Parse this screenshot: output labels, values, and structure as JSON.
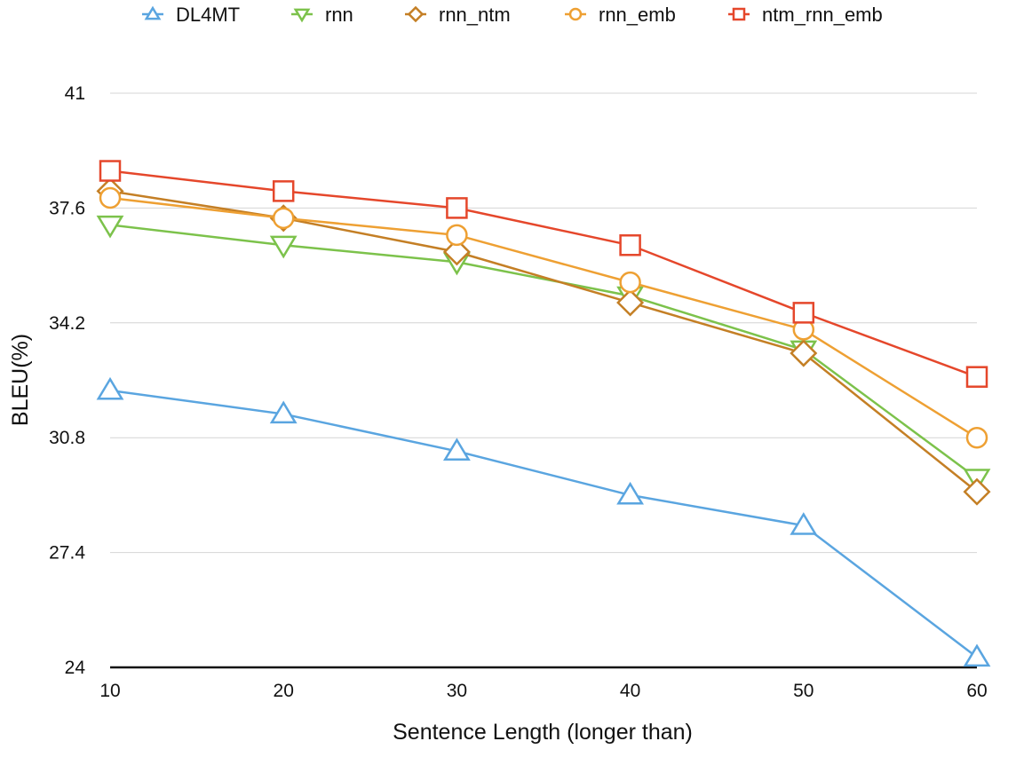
{
  "chart_data": {
    "type": "line",
    "xlabel": "Sentence Length (longer than)",
    "ylabel": "BLEU(%)",
    "x": [
      10,
      20,
      30,
      40,
      50,
      60
    ],
    "ylim": [
      24,
      41
    ],
    "yticks": [
      "24",
      "27.4",
      "30.8",
      "34.2",
      "37.6",
      "41"
    ],
    "ytick_values": [
      24,
      27.4,
      30.8,
      34.2,
      37.6,
      41
    ],
    "xticks": [
      "10",
      "20",
      "30",
      "40",
      "50",
      "60"
    ],
    "grid": true,
    "legend_position": "top",
    "series": [
      {
        "name": "DL4MT",
        "color": "#5aa5e0",
        "marker": "triangle-up",
        "values": [
          32.2,
          31.5,
          30.4,
          29.1,
          28.2,
          24.3
        ]
      },
      {
        "name": "rnn",
        "color": "#7cc24b",
        "marker": "triangle-down",
        "values": [
          37.1,
          36.5,
          36.0,
          35.0,
          33.4,
          29.6
        ]
      },
      {
        "name": "rnn_ntm",
        "color": "#c47f25",
        "marker": "diamond",
        "values": [
          38.1,
          37.3,
          36.3,
          34.8,
          33.3,
          29.2
        ]
      },
      {
        "name": "rnn_emb",
        "color": "#eea033",
        "marker": "circle",
        "values": [
          37.9,
          37.3,
          36.8,
          35.4,
          34.0,
          30.8
        ]
      },
      {
        "name": "ntm_rnn_emb",
        "color": "#e5472b",
        "marker": "square",
        "values": [
          38.7,
          38.1,
          37.6,
          36.5,
          34.5,
          32.6
        ]
      }
    ]
  }
}
